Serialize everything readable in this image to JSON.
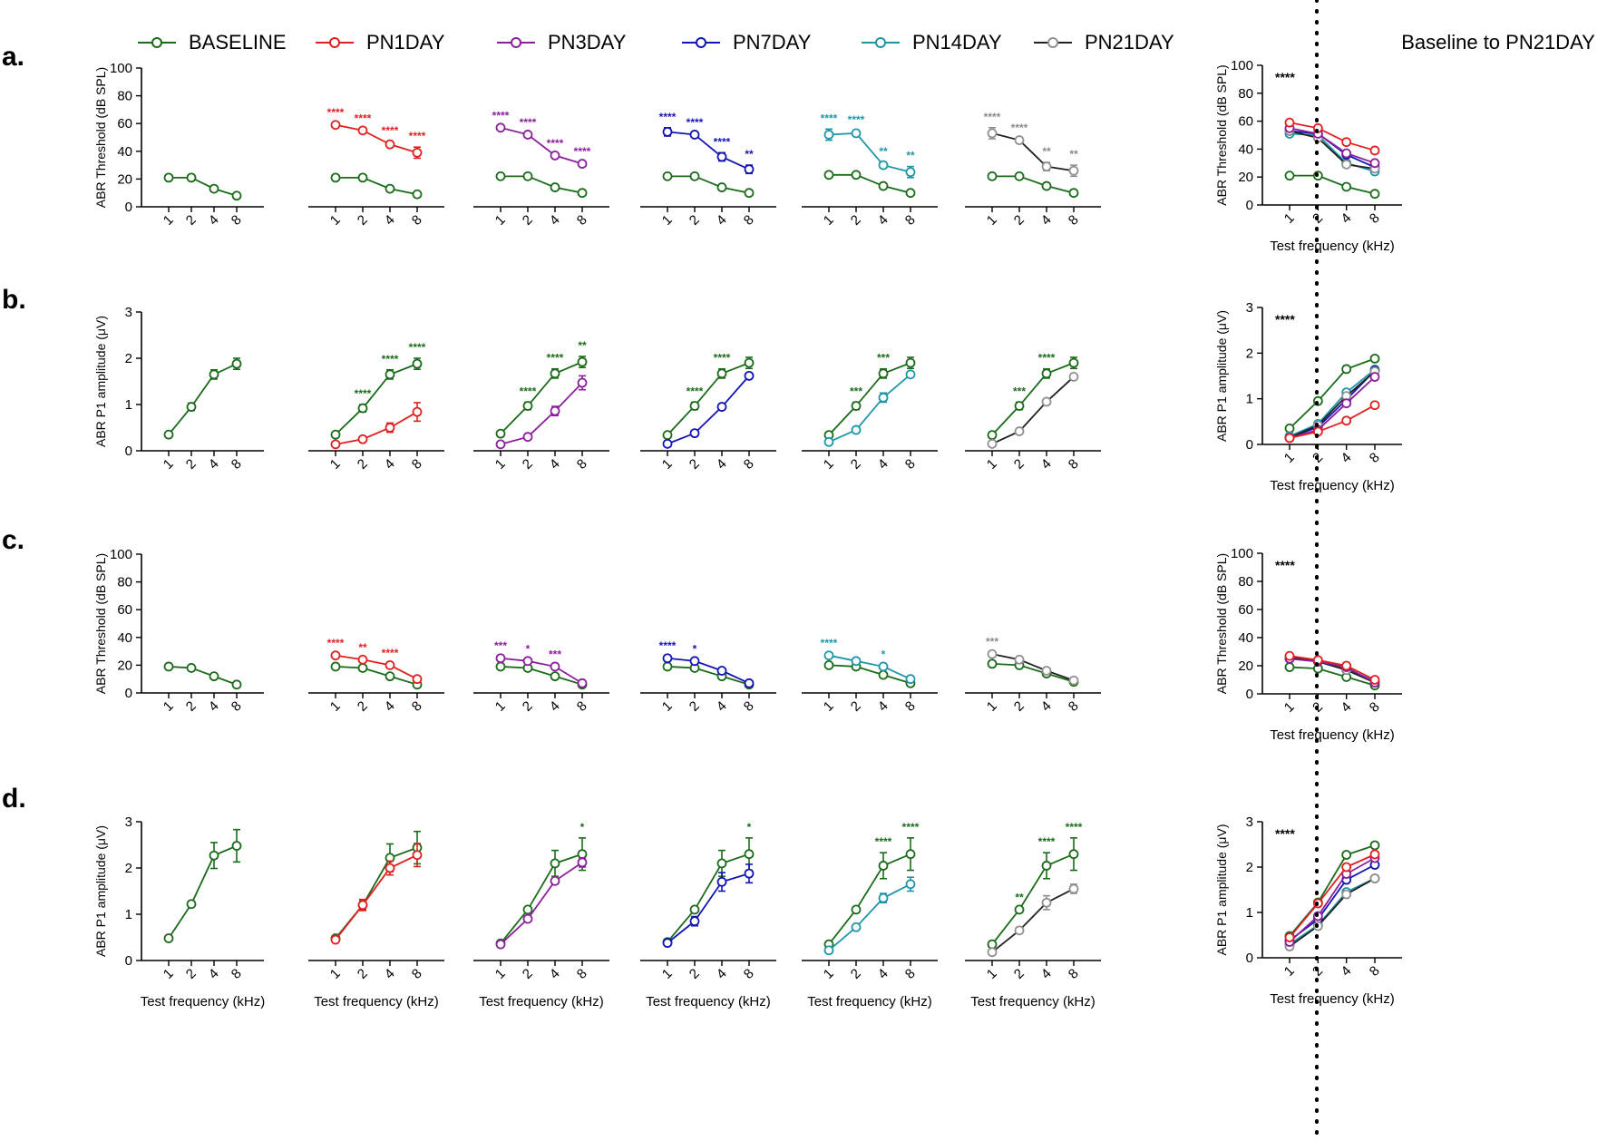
{
  "colors": {
    "BASELINE": "#1a6b1a",
    "PN1DAY": "#e02020",
    "PN3DAY": "#8b1f9c",
    "PN7DAY": "#1414b4",
    "PN14DAY": "#1e96a8",
    "PN21DAY": "#222222",
    "PN21DAY_marker": "#909090",
    "PN21DAY_ann": "#8a8a8a"
  },
  "legend": [
    "BASELINE",
    "PN1DAY",
    "PN3DAY",
    "PN7DAY",
    "PN14DAY",
    "PN21DAY"
  ],
  "summary_title": "Baseline to PN21DAY",
  "row_labels": [
    "a.",
    "b.",
    "c.",
    "d."
  ],
  "chart_data": {
    "type": "line",
    "x_categories": [
      "1",
      "2",
      "4",
      "8"
    ],
    "xlabel": "Test frequency (kHz)",
    "rows": [
      {
        "label": "a.",
        "ylabel": "ABR Threshold (dB SPL)",
        "ylim": [
          0,
          100
        ],
        "yticks": [
          "0",
          "20",
          "40",
          "60",
          "80",
          "100"
        ],
        "baseline": {
          "values": [
            21,
            21,
            13,
            8
          ],
          "err": [
            3,
            1,
            1,
            2
          ]
        },
        "panels": [
          {
            "name": "BASELINE",
            "compare": null,
            "baseline": [
              21,
              21,
              13,
              8
            ],
            "values": null,
            "ann": []
          },
          {
            "name": "PN1DAY",
            "compare": "PN1DAY",
            "baseline": [
              21,
              21,
              13,
              9
            ],
            "values": [
              59,
              55,
              45,
              39
            ],
            "err": [
              1,
              1,
              2,
              4
            ],
            "ann": [
              "****",
              "****",
              "****",
              "****"
            ],
            "ann_color": "PN1DAY"
          },
          {
            "name": "PN3DAY",
            "compare": "PN3DAY",
            "baseline": [
              22,
              22,
              14,
              10
            ],
            "values": [
              57,
              52,
              37,
              31
            ],
            "err": [
              1,
              1,
              1,
              1
            ],
            "ann": [
              "****",
              "****",
              "****",
              "****"
            ],
            "ann_color": "PN3DAY"
          },
          {
            "name": "PN7DAY",
            "compare": "PN7DAY",
            "baseline": [
              22,
              22,
              14,
              10
            ],
            "values": [
              54,
              52,
              36,
              27
            ],
            "err": [
              3,
              1,
              3,
              3
            ],
            "ann": [
              "****",
              "****",
              "****",
              "**"
            ],
            "ann_color": "PN7DAY"
          },
          {
            "name": "PN14DAY",
            "compare": "PN14DAY",
            "baseline": [
              23,
              23,
              15,
              10
            ],
            "values": [
              52,
              53,
              30,
              25
            ],
            "err": [
              4,
              2,
              2,
              4
            ],
            "ann": [
              "****",
              "****",
              "**",
              "**"
            ],
            "ann_color": "PN14DAY"
          },
          {
            "name": "PN21DAY",
            "compare": "PN21DAY",
            "baseline": [
              22,
              22,
              15,
              10
            ],
            "values": [
              53,
              48,
              29,
              26
            ],
            "err": [
              4,
              1,
              3,
              4
            ],
            "ann": [
              "****",
              "****",
              "**",
              "**"
            ],
            "ann_color": "PN21DAY_ann"
          }
        ],
        "summary": {
          "ann": "****",
          "series": {
            "BASELINE": [
              21,
              21,
              13,
              8
            ],
            "PN1DAY": [
              59,
              55,
              45,
              39
            ],
            "PN3DAY": [
              55,
              51,
              37,
              30
            ],
            "PN7DAY": [
              53,
              51,
              36,
              27
            ],
            "PN14DAY": [
              51,
              50,
              30,
              24
            ],
            "PN21DAY": [
              53,
              48,
              29,
              26
            ]
          }
        }
      },
      {
        "label": "b.",
        "ylabel": "ABR P1 amplitude (μV)",
        "ylim": [
          0,
          3
        ],
        "yticks": [
          "0",
          "1",
          "2",
          "3"
        ],
        "panels": [
          {
            "name": "BASELINE",
            "compare": null,
            "baseline": [
              0.35,
              0.95,
              1.65,
              1.88
            ],
            "values": null,
            "ann": []
          },
          {
            "name": "PN1DAY",
            "compare": "PN1DAY",
            "baseline": [
              0.35,
              0.92,
              1.65,
              1.88
            ],
            "values": [
              0.14,
              0.25,
              0.5,
              0.84
            ],
            "err": [
              0.02,
              0.02,
              0.1,
              0.2
            ],
            "ann": [
              "",
              "****",
              "****",
              "****"
            ],
            "ann_color": "BASELINE"
          },
          {
            "name": "PN3DAY",
            "compare": "PN3DAY",
            "baseline": [
              0.37,
              0.97,
              1.67,
              1.92
            ],
            "values": [
              0.14,
              0.3,
              0.86,
              1.47
            ],
            "err": [
              0.02,
              0.02,
              0.1,
              0.15
            ],
            "ann": [
              "",
              "****",
              "****",
              "**"
            ],
            "ann_color": "BASELINE"
          },
          {
            "name": "PN7DAY",
            "compare": "PN7DAY",
            "baseline": [
              0.34,
              0.97,
              1.67,
              1.9
            ],
            "values": [
              0.15,
              0.38,
              0.95,
              1.62
            ],
            "err": [
              0.02,
              0.03,
              0.03,
              0.05
            ],
            "ann": [
              "",
              "****",
              "****",
              ""
            ],
            "ann_color": "BASELINE"
          },
          {
            "name": "PN14DAY",
            "compare": "PN14DAY",
            "baseline": [
              0.34,
              0.97,
              1.67,
              1.9
            ],
            "values": [
              0.19,
              0.45,
              1.15,
              1.65
            ],
            "err": [
              0.02,
              0.02,
              0.1,
              0.05
            ],
            "ann": [
              "",
              "***",
              "***",
              ""
            ],
            "ann_color": "BASELINE"
          },
          {
            "name": "PN21DAY",
            "compare": "PN21DAY",
            "baseline": [
              0.34,
              0.97,
              1.67,
              1.9
            ],
            "values": [
              0.15,
              0.42,
              1.06,
              1.6
            ],
            "err": [
              0.02,
              0.02,
              0.02,
              0.03
            ],
            "ann": [
              "",
              "***",
              "****",
              ""
            ],
            "ann_color": "BASELINE"
          }
        ],
        "summary": {
          "ann": "****",
          "series": {
            "BASELINE": [
              0.35,
              0.95,
              1.65,
              1.88
            ],
            "PN1DAY": [
              0.14,
              0.28,
              0.52,
              0.86
            ],
            "PN3DAY": [
              0.14,
              0.32,
              0.9,
              1.48
            ],
            "PN7DAY": [
              0.15,
              0.38,
              0.98,
              1.62
            ],
            "PN14DAY": [
              0.18,
              0.45,
              1.14,
              1.64
            ],
            "PN21DAY": [
              0.15,
              0.42,
              1.06,
              1.6
            ]
          }
        }
      },
      {
        "label": "c.",
        "ylabel": "ABR Threshold (dB SPL)",
        "ylim": [
          0,
          100
        ],
        "yticks": [
          "0",
          "20",
          "40",
          "60",
          "80",
          "100"
        ],
        "panels": [
          {
            "name": "BASELINE",
            "compare": null,
            "baseline": [
              19,
              18,
              12,
              6
            ],
            "values": null,
            "ann": []
          },
          {
            "name": "PN1DAY",
            "compare": "PN1DAY",
            "baseline": [
              19,
              18,
              12,
              6
            ],
            "values": [
              27,
              24,
              20,
              10
            ],
            "err": [
              1,
              1,
              1,
              1
            ],
            "ann": [
              "****",
              "**",
              "****",
              ""
            ],
            "ann_color": "PN1DAY"
          },
          {
            "name": "PN3DAY",
            "compare": "PN3DAY",
            "baseline": [
              19,
              18,
              12,
              6
            ],
            "values": [
              25,
              23,
              19,
              7
            ],
            "err": [
              1,
              1,
              1,
              1
            ],
            "ann": [
              "***",
              "*",
              "***",
              ""
            ],
            "ann_color": "PN3DAY"
          },
          {
            "name": "PN7DAY",
            "compare": "PN7DAY",
            "baseline": [
              19,
              18,
              12,
              6
            ],
            "values": [
              25,
              23,
              16,
              7
            ],
            "err": [
              1,
              1,
              1,
              1
            ],
            "ann": [
              "****",
              "*",
              "",
              ""
            ],
            "ann_color": "PN7DAY"
          },
          {
            "name": "PN14DAY",
            "compare": "PN14DAY",
            "baseline": [
              20,
              19,
              13,
              7
            ],
            "values": [
              27,
              23,
              19,
              10
            ],
            "err": [
              1,
              1,
              1,
              1
            ],
            "ann": [
              "****",
              "",
              "*",
              ""
            ],
            "ann_color": "PN14DAY"
          },
          {
            "name": "PN21DAY",
            "compare": "PN21DAY",
            "baseline": [
              21,
              20,
              14,
              8
            ],
            "values": [
              28,
              24,
              16,
              9
            ],
            "err": [
              1,
              1,
              1,
              1
            ],
            "ann": [
              "***",
              "",
              "",
              ""
            ],
            "ann_color": "PN21DAY_ann"
          }
        ],
        "summary": {
          "ann": "****",
          "series": {
            "BASELINE": [
              19,
              18,
              12,
              6
            ],
            "PN1DAY": [
              27,
              24,
              20,
              10
            ],
            "PN3DAY": [
              25,
              23,
              19,
              8
            ],
            "PN7DAY": [
              25,
              23,
              17,
              8
            ],
            "PN14DAY": [
              26,
              23,
              18,
              9
            ],
            "PN21DAY": [
              26,
              23,
              17,
              8
            ]
          }
        }
      },
      {
        "label": "d.",
        "ylabel": "ABR P1 amplitude (μV)",
        "ylim": [
          0,
          3
        ],
        "yticks": [
          "0",
          "1",
          "2",
          "3"
        ],
        "panels": [
          {
            "name": "BASELINE",
            "compare": null,
            "baseline": [
              0.48,
              1.22,
              2.27,
              2.48
            ],
            "values": null,
            "err_base": [
              0.05,
              0.03,
              0.28,
              0.35
            ],
            "ann": []
          },
          {
            "name": "PN1DAY",
            "compare": "PN1DAY",
            "baseline": [
              0.48,
              1.2,
              2.22,
              2.44
            ],
            "values": [
              0.45,
              1.2,
              2.0,
              2.28
            ],
            "err": [
              0.05,
              0.12,
              0.15,
              0.25
            ],
            "err_base": [
              0.05,
              0.1,
              0.3,
              0.35
            ],
            "ann": [
              "",
              "",
              "",
              ""
            ],
            "ann_color": "BASELINE"
          },
          {
            "name": "PN3DAY",
            "compare": "PN3DAY",
            "baseline": [
              0.37,
              1.1,
              2.1,
              2.3
            ],
            "values": [
              0.35,
              0.9,
              1.72,
              2.12
            ],
            "err": [
              0.03,
              0.03,
              0.05,
              0.1
            ],
            "err_base": [
              0.03,
              0.03,
              0.28,
              0.35
            ],
            "ann": [
              "",
              "",
              "",
              "*"
            ],
            "ann_color": "BASELINE"
          },
          {
            "name": "PN7DAY",
            "compare": "PN7DAY",
            "baseline": [
              0.4,
              1.1,
              2.1,
              2.3
            ],
            "values": [
              0.38,
              0.85,
              1.7,
              1.88
            ],
            "err": [
              0.03,
              0.1,
              0.2,
              0.2
            ],
            "err_base": [
              0.03,
              0.03,
              0.28,
              0.35
            ],
            "ann": [
              "",
              "",
              "",
              "*"
            ],
            "ann_color": "BASELINE"
          },
          {
            "name": "PN14DAY",
            "compare": "PN14DAY",
            "baseline": [
              0.35,
              1.1,
              2.05,
              2.3
            ],
            "values": [
              0.22,
              0.72,
              1.35,
              1.65
            ],
            "err": [
              0.03,
              0.05,
              0.1,
              0.15
            ],
            "err_base": [
              0.03,
              0.03,
              0.28,
              0.35
            ],
            "ann": [
              "",
              "",
              "****",
              "****"
            ],
            "ann_color": "BASELINE"
          },
          {
            "name": "PN21DAY",
            "compare": "PN21DAY",
            "baseline": [
              0.35,
              1.1,
              2.05,
              2.3
            ],
            "values": [
              0.18,
              0.65,
              1.25,
              1.55
            ],
            "err": [
              0.03,
              0.05,
              0.15,
              0.1
            ],
            "err_base": [
              0.03,
              0.03,
              0.28,
              0.35
            ],
            "ann": [
              "",
              "**",
              "****",
              "****"
            ],
            "ann_color": "BASELINE"
          }
        ],
        "summary": {
          "ann": "****",
          "series": {
            "BASELINE": [
              0.48,
              1.22,
              2.27,
              2.48
            ],
            "PN1DAY": [
              0.45,
              1.2,
              2.0,
              2.28
            ],
            "PN3DAY": [
              0.35,
              0.92,
              1.85,
              2.2
            ],
            "PN7DAY": [
              0.38,
              0.85,
              1.72,
              2.05
            ],
            "PN14DAY": [
              0.3,
              0.72,
              1.45,
              1.75
            ],
            "PN21DAY": [
              0.25,
              0.7,
              1.4,
              1.75
            ]
          }
        }
      }
    ]
  }
}
